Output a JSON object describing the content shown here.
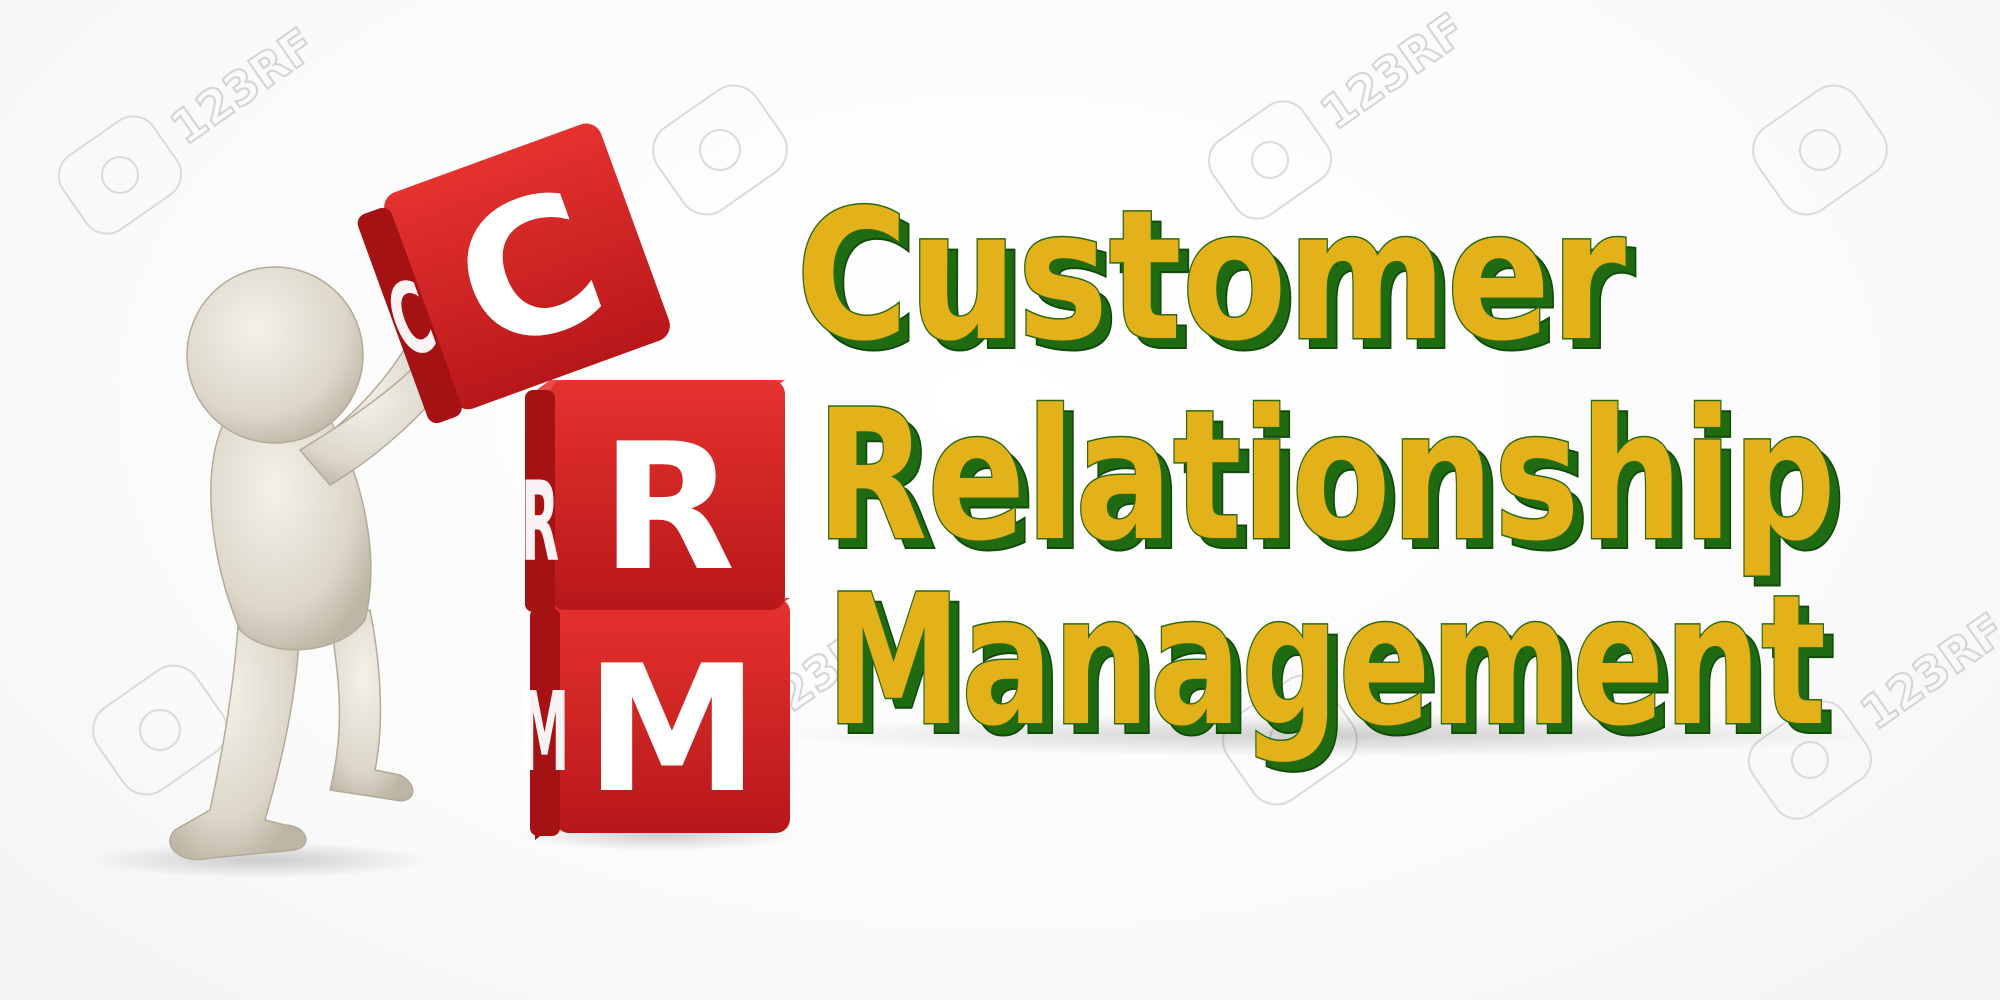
{
  "cubes": [
    {
      "front": "C",
      "side": "C"
    },
    {
      "front": "R",
      "side": "R"
    },
    {
      "front": "M",
      "side": "M"
    }
  ],
  "words": [
    "Customer",
    "Relationship",
    "Management"
  ],
  "watermark": {
    "text": "123RF"
  },
  "colors": {
    "cube_front": "#d4201f",
    "cube_side": "#a51214",
    "cube_top": "#e84a48",
    "letter_face": "#e3b21a",
    "letter_extrusion": "#1e6b12",
    "figure": "#e6e1d6"
  }
}
